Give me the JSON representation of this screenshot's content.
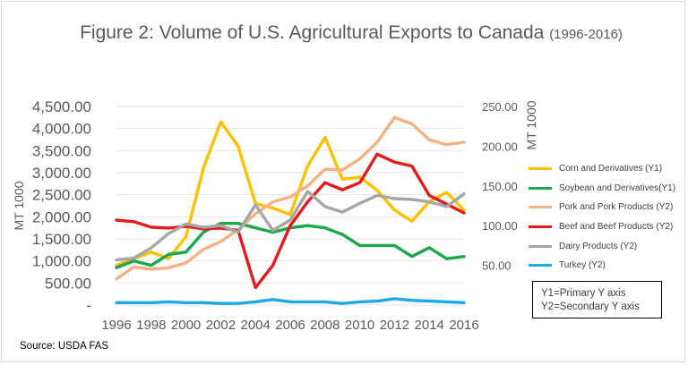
{
  "chart_data": {
    "type": "line",
    "title": "Figure 2: Volume of U.S. Agricultural Exports to Canada",
    "title_suffix": "(1996-2016)",
    "ylabel_left": "MT 1000",
    "ylabel_right": "MT 1000",
    "xlabel": "",
    "x": [
      1996,
      1997,
      1998,
      1999,
      2000,
      2001,
      2002,
      2003,
      2004,
      2005,
      2006,
      2007,
      2008,
      2009,
      2010,
      2011,
      2012,
      2013,
      2014,
      2015,
      2016
    ],
    "x_tick_labels": [
      "1996",
      "1998",
      "2000",
      "2002",
      "2004",
      "2006",
      "2008",
      "2010",
      "2012",
      "2014",
      "2016"
    ],
    "ylim_left": [
      0,
      4500
    ],
    "ylim_right": [
      0,
      250
    ],
    "y_tick_labels_left": [
      "-",
      "500.00",
      "1,000.00",
      "1,500.00",
      "2,000.00",
      "2,500.00",
      "3,000.00",
      "3,500.00",
      "4,000.00",
      "4,500.00"
    ],
    "y_tick_labels_right": [
      "50.00",
      "100.00",
      "150.00",
      "200.00",
      "250.00"
    ],
    "grid": true,
    "legend_position": "right",
    "series": [
      {
        "name": "Corn and Derivatives (Y1)",
        "axis": "left",
        "color": "#FFC000",
        "values": [
          900,
          1050,
          1200,
          1050,
          1550,
          3100,
          4150,
          3600,
          2300,
          2200,
          2050,
          3150,
          3800,
          2850,
          2900,
          2600,
          2150,
          1900,
          2350,
          2550,
          2150
        ]
      },
      {
        "name": "Soybean and Derivatives(Y1)",
        "axis": "left",
        "color": "#1AA84A",
        "values": [
          850,
          1000,
          900,
          1150,
          1200,
          1650,
          1850,
          1850,
          1750,
          1650,
          1750,
          1800,
          1750,
          1600,
          1350,
          1350,
          1350,
          1100,
          1300,
          1050,
          1100
        ]
      },
      {
        "name": "Pork and Pork Products (Y2)",
        "axis": "right",
        "color": "#F4B183",
        "values": [
          33,
          48,
          45,
          47,
          53,
          70,
          80,
          95,
          115,
          130,
          136,
          150,
          171,
          170,
          184,
          205,
          236,
          228,
          208,
          202,
          205
        ]
      },
      {
        "name": "Beef and Beef Products (Y2)",
        "axis": "right",
        "color": "#E41A1C",
        "values": [
          107,
          105,
          98,
          97,
          99,
          96,
          97,
          94,
          22,
          50,
          100,
          130,
          154,
          145,
          154,
          190,
          180,
          175,
          138,
          127,
          116
        ]
      },
      {
        "name": "Dairy Products (Y2)",
        "axis": "right",
        "color": "#A6A6A6",
        "values": [
          57,
          59,
          72,
          90,
          102,
          98,
          100,
          92,
          126,
          94,
          107,
          143,
          124,
          117,
          128,
          138,
          134,
          133,
          130,
          124,
          140
        ]
      },
      {
        "name": "Turkey (Y2)",
        "axis": "right",
        "color": "#1CA9E6",
        "values": [
          3,
          3,
          3,
          4,
          3,
          3,
          2,
          2,
          4,
          7,
          4,
          4,
          4,
          2,
          4,
          5,
          8,
          6,
          5,
          4,
          3
        ]
      }
    ]
  },
  "axis_note": {
    "line1": "Y1=Primary Y axis",
    "line2": "Y2=Secondary Y axis"
  },
  "source": "Source: USDA FAS"
}
